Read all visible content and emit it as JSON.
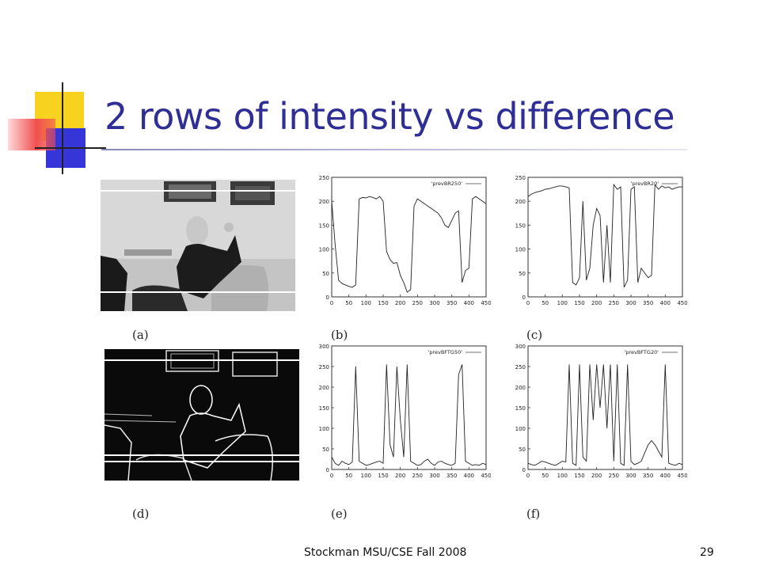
{
  "slide": {
    "title": "2 rows of intensity vs difference",
    "footer": "Stockman MSU/CSE  Fall 2008",
    "page_number": "29"
  },
  "captions": [
    "(a)",
    "(b)",
    "(c)",
    "(d)",
    "(e)",
    "(f)"
  ],
  "chart_data": [
    {
      "id": "b",
      "type": "line",
      "legend": "'prevBR250'",
      "xlim": [
        0,
        450
      ],
      "ylim": [
        0,
        250
      ],
      "xticks": [
        "0",
        "50",
        "100",
        "150",
        "200",
        "250",
        "300",
        "350",
        "400",
        "450"
      ],
      "yticks": [
        "0",
        "50",
        "100",
        "150",
        "200",
        "250"
      ],
      "x": [
        0,
        10,
        20,
        30,
        40,
        50,
        60,
        70,
        80,
        90,
        100,
        110,
        120,
        130,
        140,
        150,
        160,
        170,
        180,
        190,
        200,
        210,
        220,
        230,
        240,
        250,
        260,
        270,
        280,
        290,
        300,
        310,
        320,
        330,
        340,
        350,
        360,
        370,
        380,
        390,
        400,
        410,
        420,
        430,
        440,
        450
      ],
      "y": [
        200,
        110,
        35,
        28,
        25,
        22,
        20,
        25,
        205,
        208,
        207,
        210,
        208,
        205,
        210,
        200,
        95,
        78,
        70,
        72,
        45,
        30,
        10,
        15,
        190,
        205,
        200,
        195,
        190,
        185,
        180,
        175,
        165,
        150,
        145,
        160,
        175,
        180,
        30,
        55,
        60,
        205,
        210,
        205,
        200,
        195
      ]
    },
    {
      "id": "c",
      "type": "line",
      "legend": "'prevBR20'",
      "xlim": [
        0,
        450
      ],
      "ylim": [
        0,
        250
      ],
      "xticks": [
        "0",
        "50",
        "100",
        "150",
        "200",
        "250",
        "300",
        "350",
        "400",
        "450"
      ],
      "yticks": [
        "0",
        "50",
        "100",
        "150",
        "200",
        "250"
      ],
      "x": [
        0,
        10,
        20,
        30,
        40,
        50,
        60,
        70,
        80,
        90,
        100,
        110,
        120,
        130,
        140,
        150,
        160,
        170,
        180,
        190,
        200,
        210,
        220,
        230,
        240,
        250,
        260,
        270,
        280,
        290,
        300,
        310,
        320,
        330,
        340,
        350,
        360,
        370,
        380,
        390,
        400,
        410,
        420,
        430,
        440,
        450
      ],
      "y": [
        210,
        215,
        218,
        220,
        222,
        225,
        226,
        228,
        230,
        232,
        232,
        230,
        228,
        30,
        25,
        40,
        200,
        35,
        60,
        150,
        185,
        170,
        30,
        150,
        30,
        235,
        225,
        230,
        20,
        35,
        225,
        230,
        30,
        60,
        50,
        40,
        45,
        235,
        225,
        232,
        228,
        230,
        225,
        228,
        230,
        230
      ]
    },
    {
      "id": "e",
      "type": "line",
      "legend": "'prevBFTG50'",
      "xlim": [
        0,
        450
      ],
      "ylim": [
        0,
        300
      ],
      "xticks": [
        "0",
        "50",
        "100",
        "150",
        "200",
        "250",
        "300",
        "350",
        "400",
        "450"
      ],
      "yticks": [
        "0",
        "50",
        "100",
        "150",
        "200",
        "250",
        "300"
      ],
      "x": [
        0,
        10,
        20,
        30,
        40,
        50,
        60,
        70,
        80,
        90,
        100,
        110,
        120,
        130,
        140,
        150,
        160,
        170,
        180,
        190,
        200,
        210,
        220,
        230,
        240,
        250,
        260,
        270,
        280,
        290,
        300,
        310,
        320,
        330,
        340,
        350,
        360,
        370,
        380,
        390,
        400,
        410,
        420,
        430,
        440,
        450
      ],
      "y": [
        30,
        15,
        10,
        20,
        15,
        12,
        18,
        250,
        20,
        15,
        10,
        12,
        15,
        18,
        20,
        15,
        255,
        60,
        30,
        250,
        120,
        30,
        255,
        20,
        15,
        10,
        12,
        20,
        25,
        15,
        10,
        18,
        20,
        15,
        12,
        10,
        15,
        230,
        255,
        20,
        15,
        10,
        12,
        10,
        15,
        12
      ]
    },
    {
      "id": "f",
      "type": "line",
      "legend": "'prevBFTG20'",
      "xlim": [
        0,
        450
      ],
      "ylim": [
        0,
        300
      ],
      "xticks": [
        "0",
        "50",
        "100",
        "150",
        "200",
        "250",
        "300",
        "350",
        "400",
        "450"
      ],
      "yticks": [
        "0",
        "50",
        "100",
        "150",
        "200",
        "250",
        "300"
      ],
      "x": [
        0,
        10,
        20,
        30,
        40,
        50,
        60,
        70,
        80,
        90,
        100,
        110,
        120,
        130,
        140,
        150,
        160,
        170,
        180,
        190,
        200,
        210,
        220,
        230,
        240,
        250,
        260,
        270,
        280,
        290,
        300,
        310,
        320,
        330,
        340,
        350,
        360,
        370,
        380,
        390,
        400,
        410,
        420,
        430,
        440,
        450
      ],
      "y": [
        15,
        12,
        10,
        15,
        20,
        18,
        15,
        12,
        10,
        15,
        20,
        18,
        255,
        15,
        10,
        255,
        30,
        20,
        255,
        120,
        255,
        150,
        255,
        100,
        255,
        20,
        255,
        15,
        10,
        255,
        20,
        12,
        15,
        20,
        40,
        60,
        70,
        60,
        45,
        30,
        255,
        15,
        12,
        10,
        15,
        12
      ]
    }
  ]
}
